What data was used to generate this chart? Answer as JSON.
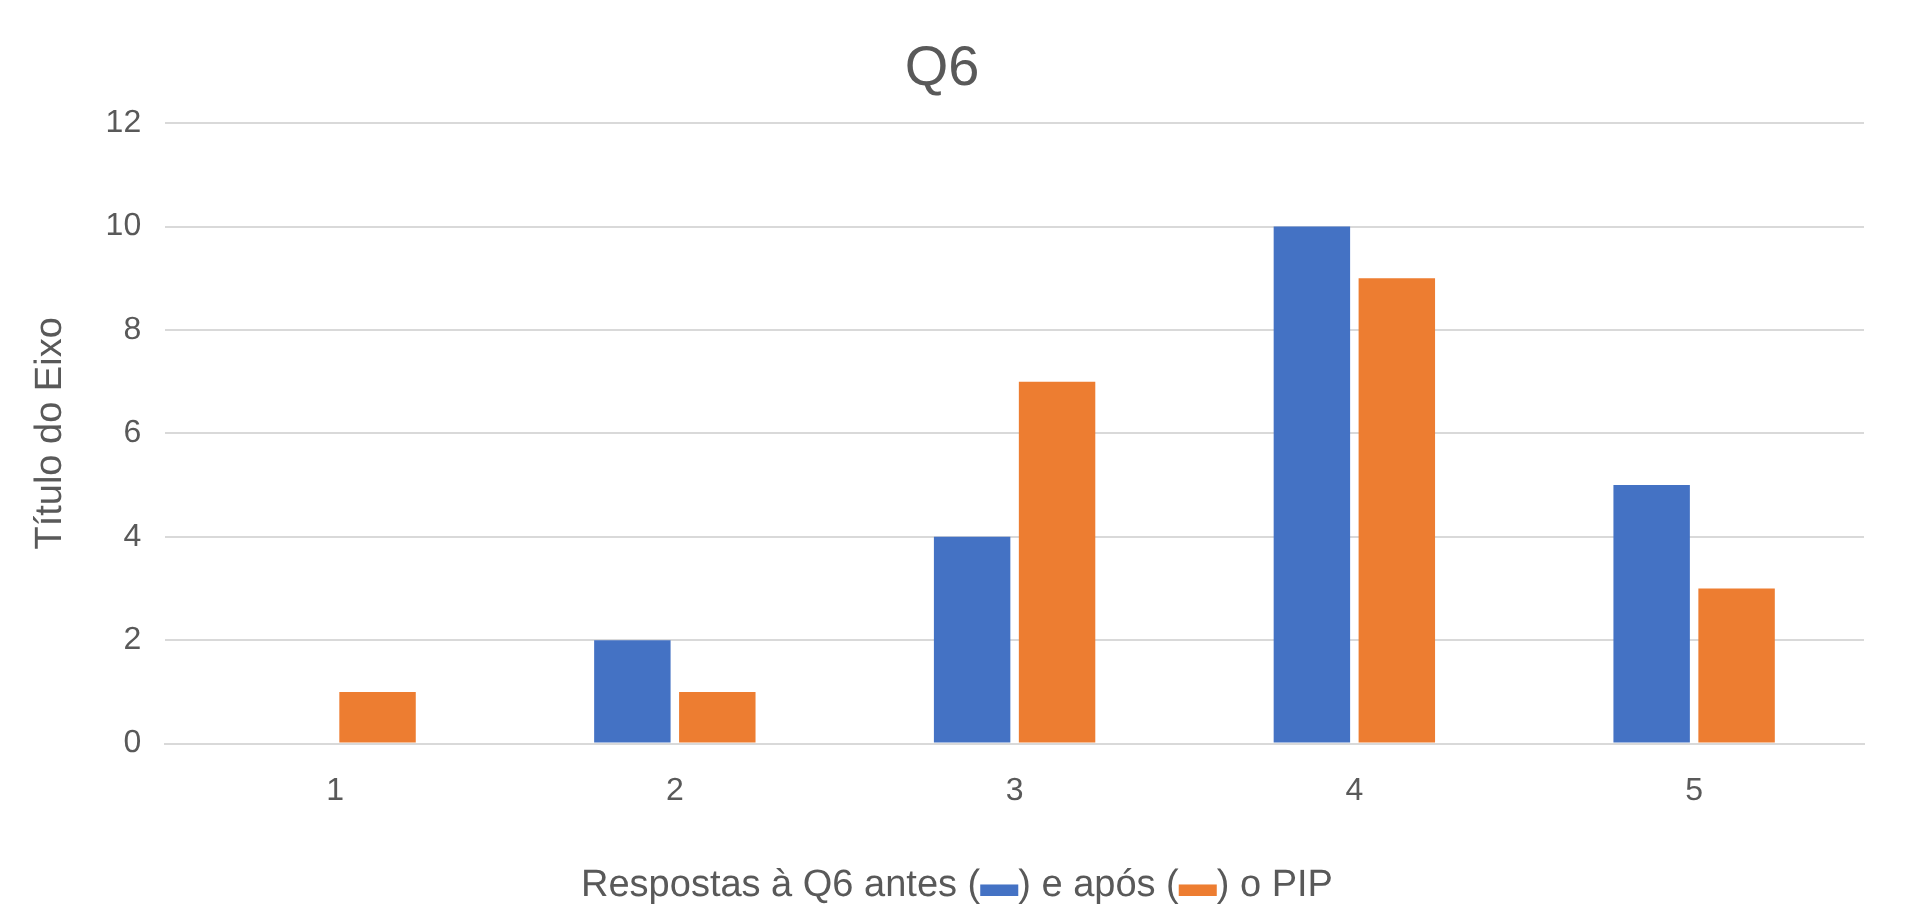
{
  "chart_data": {
    "type": "bar",
    "title": "Q6",
    "ylabel": "Título do Eixo",
    "xlabel": "Respostas à Q6 antes (▬) e após (▬) o PIP",
    "categories": [
      "1",
      "2",
      "3",
      "4",
      "5"
    ],
    "series": [
      {
        "color": "#4472c4",
        "values": [
          0,
          2,
          4,
          10,
          5
        ]
      },
      {
        "color": "#ed7d31",
        "values": [
          1,
          1,
          7,
          9,
          3
        ]
      }
    ],
    "ylim": [
      0,
      12
    ],
    "yticks": [
      0,
      2,
      4,
      6,
      8,
      10,
      12
    ],
    "grid": "y",
    "legend": false
  }
}
